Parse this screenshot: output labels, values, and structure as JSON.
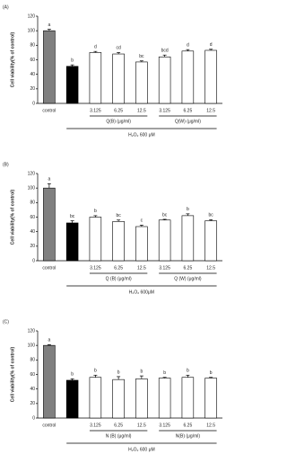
{
  "chart_data": [
    {
      "type": "bar",
      "panel_label": "(A)",
      "ylabel": "Cell viability(% of control)",
      "categories": [
        "control",
        null,
        "3.125",
        "6.25",
        "12.5",
        "3.125",
        "6.25",
        "12.5"
      ],
      "values": [
        100,
        51,
        70,
        68,
        57,
        64,
        72,
        73
      ],
      "errors": [
        2,
        2,
        1.5,
        2,
        1.5,
        2.5,
        2,
        1.5
      ],
      "letters": [
        "a",
        "b",
        "d",
        "cd",
        "bc",
        "bcd",
        "d",
        "d"
      ],
      "colors": [
        "#808080",
        "#000000",
        "#ffffff",
        "#ffffff",
        "#ffffff",
        "#ffffff",
        "#ffffff",
        "#ffffff"
      ],
      "ylim": [
        0,
        120
      ],
      "yticks": [
        0,
        20,
        40,
        60,
        80,
        100,
        120
      ],
      "group_labels": [
        "Q(B) (μg/ml)",
        "Q(W) (μg/ml)"
      ],
      "treatment_label": "H₂O₂ 600 μM"
    },
    {
      "type": "bar",
      "panel_label": "(B)",
      "ylabel": "Cell viability(% of control)",
      "categories": [
        "control",
        null,
        "3.125",
        "6.25",
        "12.5",
        "3.125",
        "6.25",
        "12.5"
      ],
      "values": [
        100,
        52,
        60,
        54,
        47,
        56,
        62,
        55
      ],
      "errors": [
        6,
        3,
        2,
        2,
        2,
        1,
        2.5,
        1.5
      ],
      "letters": [
        "a",
        "bc",
        "b",
        "bc",
        "c",
        "bc",
        "b",
        "bc"
      ],
      "colors": [
        "#808080",
        "#000000",
        "#ffffff",
        "#ffffff",
        "#ffffff",
        "#ffffff",
        "#ffffff",
        "#ffffff"
      ],
      "ylim": [
        0,
        120
      ],
      "yticks": [
        0,
        20,
        40,
        60,
        80,
        100,
        120
      ],
      "group_labels": [
        "Q (B) (μg/ml)",
        "Q (W) (μg/ml)"
      ],
      "treatment_label": "H₂O₂ 600μM"
    },
    {
      "type": "bar",
      "panel_label": "(C)",
      "ylabel": "Cell viability(% of control)",
      "categories": [
        "control",
        null,
        "3.125",
        "6.25",
        "12.5",
        "3.125",
        "6.25",
        "12.5"
      ],
      "values": [
        100,
        52,
        56,
        53,
        54,
        55,
        56,
        55
      ],
      "errors": [
        1,
        2,
        3,
        4,
        4,
        1,
        3,
        1
      ],
      "letters": [
        "a",
        "b",
        "b",
        "b",
        "b",
        "b",
        "b",
        "b"
      ],
      "colors": [
        "#808080",
        "#000000",
        "#ffffff",
        "#ffffff",
        "#ffffff",
        "#ffffff",
        "#ffffff",
        "#ffffff"
      ],
      "ylim": [
        0,
        120
      ],
      "yticks": [
        0,
        20,
        40,
        60,
        80,
        100,
        120
      ],
      "group_labels": [
        "N (B) (μg/ml)",
        "N(B) (μg/ml)"
      ],
      "treatment_label": "H₂O₂ 600 μM"
    }
  ]
}
